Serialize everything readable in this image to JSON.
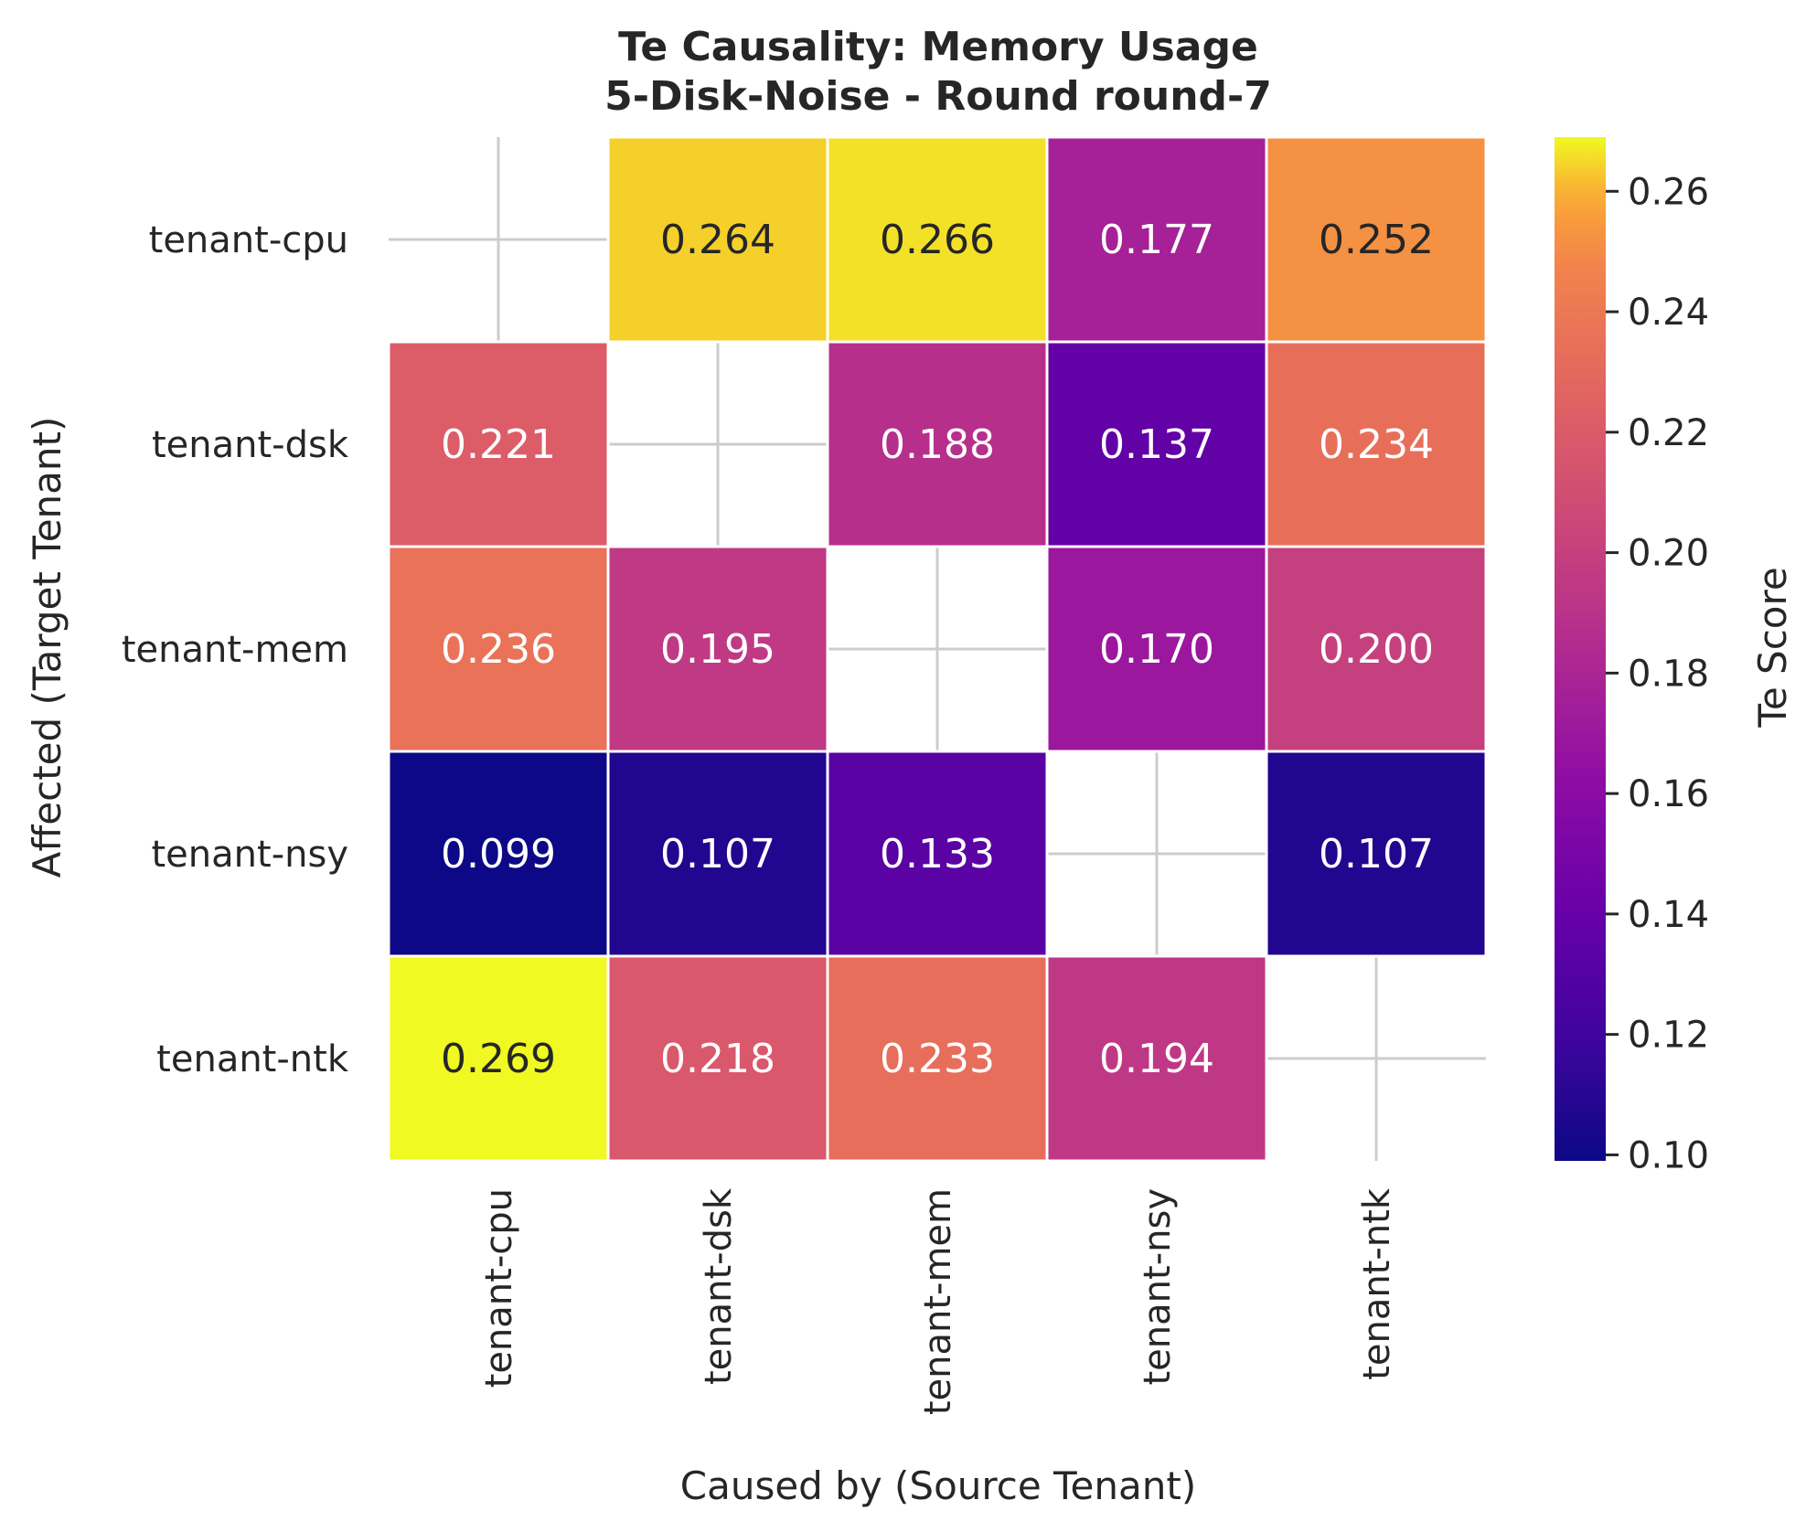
{
  "chart_data": {
    "type": "heatmap",
    "title": "Te Causality: Memory Usage",
    "subtitle": "5-Disk-Noise - Round round-7",
    "xlabel": "Caused by (Source Tenant)",
    "ylabel": "Affected (Target Tenant)",
    "x_categories": [
      "tenant-cpu",
      "tenant-dsk",
      "tenant-mem",
      "tenant-nsy",
      "tenant-ntk"
    ],
    "y_categories": [
      "tenant-cpu",
      "tenant-dsk",
      "tenant-mem",
      "tenant-nsy",
      "tenant-ntk"
    ],
    "values": [
      [
        null,
        0.264,
        0.266,
        0.177,
        0.252
      ],
      [
        0.221,
        null,
        0.188,
        0.137,
        0.234
      ],
      [
        0.236,
        0.195,
        null,
        0.17,
        0.2
      ],
      [
        0.099,
        0.107,
        0.133,
        null,
        0.107
      ],
      [
        0.269,
        0.218,
        0.233,
        0.194,
        null
      ]
    ],
    "value_format": "3 decimals",
    "colormap": "plasma",
    "colorbar": {
      "label": "Te Score",
      "min": 0.099,
      "max": 0.269,
      "ticks": [
        "0.10",
        "0.12",
        "0.14",
        "0.16",
        "0.18",
        "0.20",
        "0.22",
        "0.24",
        "0.26"
      ]
    },
    "grid": true,
    "colors": {
      "cell_border": "#ffffff",
      "grid": "#cccccc",
      "text_dark": "#262626",
      "text_light": "#ffffff"
    }
  }
}
